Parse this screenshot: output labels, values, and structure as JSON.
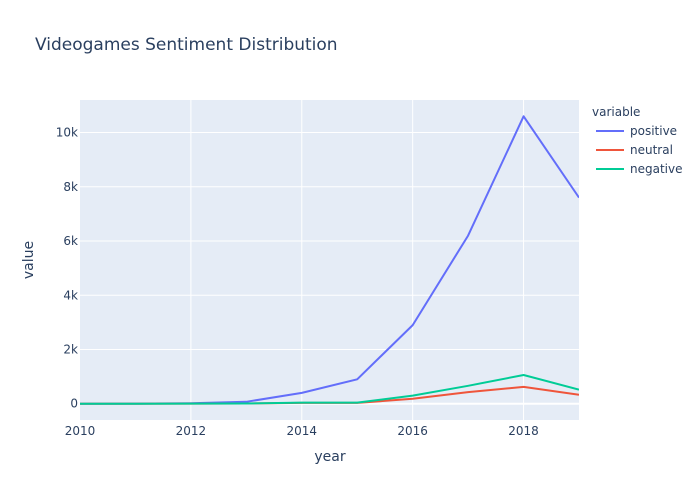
{
  "chart_data": {
    "type": "line",
    "title": "Videogames Sentiment Distribution",
    "xlabel": "year",
    "ylabel": "value",
    "legend_title": "variable",
    "legend_position": "right",
    "grid": true,
    "plot_bgcolor": "#e5ecf6",
    "xlim": [
      2010,
      2019
    ],
    "ylim": [
      -600,
      11200
    ],
    "x_ticks": [
      2010,
      2012,
      2014,
      2016,
      2018
    ],
    "x_tick_labels": [
      "2010",
      "2012",
      "2014",
      "2016",
      "2018"
    ],
    "y_ticks": [
      0,
      2000,
      4000,
      6000,
      8000,
      10000
    ],
    "y_tick_labels": [
      "0",
      "2k",
      "4k",
      "6k",
      "8k",
      "10k"
    ],
    "x": [
      2010,
      2011,
      2012,
      2013,
      2014,
      2015,
      2016,
      2017,
      2018,
      2019
    ],
    "series": [
      {
        "name": "positive",
        "color": "#636efa",
        "values": [
          0,
          5,
          20,
          70,
          400,
          900,
          2900,
          6200,
          10600,
          7600
        ]
      },
      {
        "name": "neutral",
        "color": "#ef553b",
        "values": [
          0,
          2,
          5,
          10,
          30,
          30,
          180,
          430,
          620,
          330
        ]
      },
      {
        "name": "negative",
        "color": "#00cc96",
        "values": [
          0,
          2,
          5,
          10,
          40,
          40,
          300,
          660,
          1060,
          520
        ]
      }
    ]
  }
}
